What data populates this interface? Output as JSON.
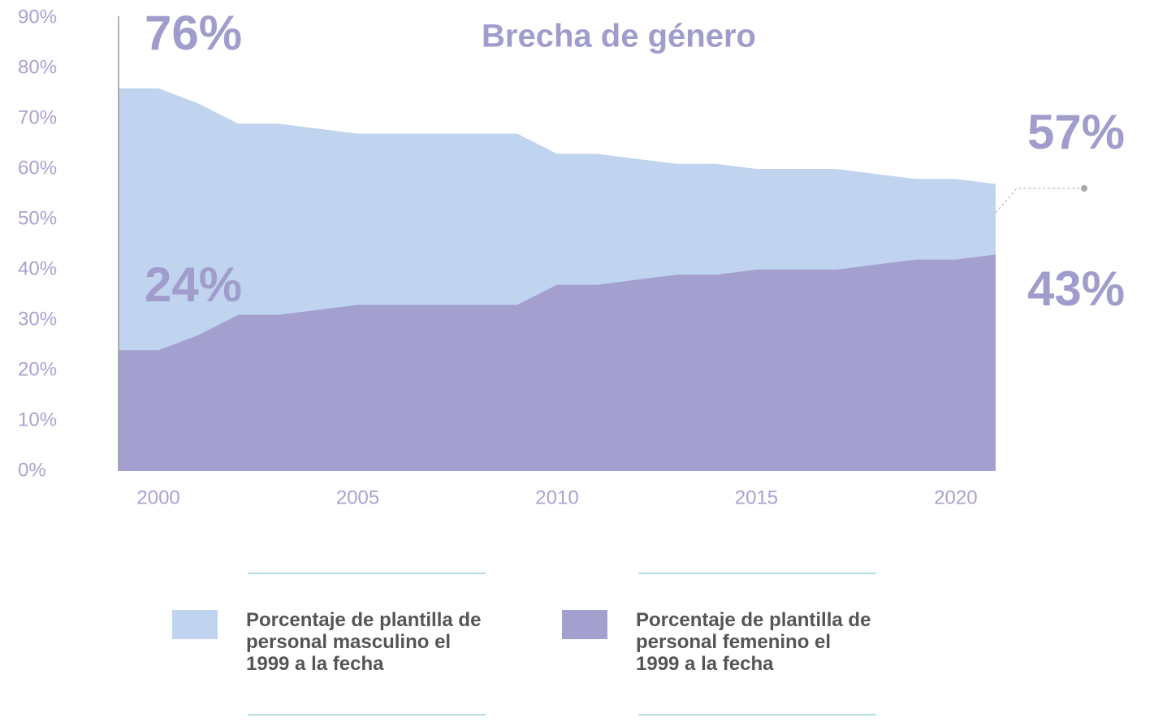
{
  "chart_data": {
    "type": "area",
    "title": "Brecha de género",
    "annotations": [
      "76%",
      "24%",
      "57%",
      "43%"
    ],
    "x": [
      1999,
      2000,
      2001,
      2002,
      2003,
      2004,
      2005,
      2006,
      2007,
      2008,
      2009,
      2010,
      2011,
      2012,
      2013,
      2014,
      2015,
      2016,
      2017,
      2018,
      2019,
      2020,
      2021
    ],
    "series": [
      {
        "name": "Porcentaje de plantilla de personal masculino el 1999 a la fecha",
        "color": "#c0d3ef",
        "values": [
          76,
          76,
          73,
          69,
          69,
          68,
          67,
          67,
          67,
          67,
          67,
          63,
          63,
          62,
          61,
          61,
          60,
          60,
          60,
          59,
          58,
          58,
          57
        ]
      },
      {
        "name": "Porcentaje de plantilla de personal femenino el 1999 a la fecha",
        "color": "#a3a0cf",
        "values": [
          24,
          24,
          27,
          31,
          31,
          32,
          33,
          33,
          33,
          33,
          33,
          37,
          37,
          38,
          39,
          39,
          40,
          40,
          40,
          41,
          42,
          42,
          43
        ]
      }
    ],
    "xlim": [
      1999,
      2021
    ],
    "xticks": [
      2000,
      2005,
      2010,
      2015,
      2020
    ],
    "ylim": [
      0,
      90
    ],
    "yticks": [
      {
        "value": 0,
        "label": "0%"
      },
      {
        "value": 10,
        "label": "10%"
      },
      {
        "value": 20,
        "label": "20%"
      },
      {
        "value": 30,
        "label": "30%"
      },
      {
        "value": 40,
        "label": "40%"
      },
      {
        "value": 50,
        "label": "50%"
      },
      {
        "value": 60,
        "label": "60%"
      },
      {
        "value": 70,
        "label": "70%"
      },
      {
        "value": 80,
        "label": "80%"
      },
      {
        "value": 90,
        "label": "90%"
      }
    ]
  }
}
